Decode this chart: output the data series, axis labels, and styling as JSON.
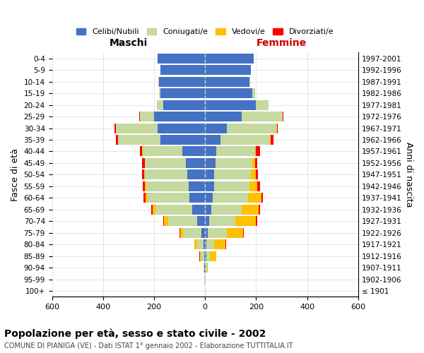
{
  "age_groups": [
    "100+",
    "95-99",
    "90-94",
    "85-89",
    "80-84",
    "75-79",
    "70-74",
    "65-69",
    "60-64",
    "55-59",
    "50-54",
    "45-49",
    "40-44",
    "35-39",
    "30-34",
    "25-29",
    "20-24",
    "15-19",
    "10-14",
    "5-9",
    "0-4"
  ],
  "birth_years": [
    "≤ 1901",
    "1902-1906",
    "1907-1911",
    "1912-1916",
    "1917-1921",
    "1922-1926",
    "1927-1931",
    "1932-1936",
    "1937-1941",
    "1942-1946",
    "1947-1951",
    "1952-1956",
    "1957-1961",
    "1962-1966",
    "1967-1971",
    "1972-1976",
    "1977-1981",
    "1982-1986",
    "1987-1991",
    "1992-1996",
    "1997-2001"
  ],
  "colors": {
    "celibe": "#4472C4",
    "coniugato": "#C5D9A0",
    "vedovo": "#FFC000",
    "divorziato": "#FF0000"
  },
  "maschi": {
    "celibe": [
      1,
      1,
      2,
      4,
      6,
      15,
      30,
      50,
      60,
      65,
      70,
      75,
      90,
      175,
      185,
      200,
      165,
      175,
      180,
      175,
      185
    ],
    "coniugato": [
      0,
      1,
      4,
      12,
      25,
      70,
      115,
      145,
      165,
      165,
      165,
      160,
      155,
      165,
      165,
      55,
      25,
      5,
      2,
      0,
      0
    ],
    "vedovo": [
      0,
      0,
      1,
      5,
      10,
      12,
      15,
      10,
      8,
      5,
      4,
      2,
      1,
      0,
      0,
      0,
      0,
      0,
      0,
      0,
      0
    ],
    "divorziato": [
      0,
      0,
      0,
      1,
      2,
      2,
      4,
      5,
      8,
      8,
      9,
      10,
      10,
      8,
      5,
      2,
      0,
      0,
      0,
      0,
      0
    ]
  },
  "femmine": {
    "nubile": [
      1,
      1,
      2,
      4,
      5,
      10,
      15,
      25,
      30,
      35,
      35,
      40,
      45,
      60,
      85,
      145,
      200,
      185,
      175,
      180,
      190
    ],
    "coniugata": [
      0,
      1,
      5,
      15,
      30,
      75,
      105,
      120,
      140,
      140,
      145,
      145,
      150,
      195,
      195,
      160,
      50,
      12,
      3,
      0,
      0
    ],
    "vedova": [
      0,
      1,
      3,
      25,
      45,
      65,
      80,
      65,
      50,
      30,
      18,
      10,
      5,
      2,
      1,
      0,
      0,
      0,
      0,
      0,
      0
    ],
    "divorziata": [
      0,
      0,
      0,
      1,
      2,
      3,
      4,
      5,
      8,
      10,
      10,
      10,
      15,
      12,
      5,
      2,
      0,
      0,
      0,
      0,
      0
    ]
  },
  "title": "Popolazione per età, sesso e stato civile - 2002",
  "subtitle": "COMUNE DI PIANIGA (VE) - Dati ISTAT 1° gennaio 2002 - Elaborazione TUTTITALIA.IT",
  "xlabel_left": "Maschi",
  "xlabel_right": "Femmine",
  "ylabel_left": "Fasce di età",
  "ylabel_right": "Anni di nascita",
  "xlim": 600,
  "background_color": "#FFFFFF",
  "grid_color": "#CCCCCC",
  "legend_labels": [
    "Celibi/Nubili",
    "Coniugati/e",
    "Vedovi/e",
    "Divorziati/e"
  ]
}
